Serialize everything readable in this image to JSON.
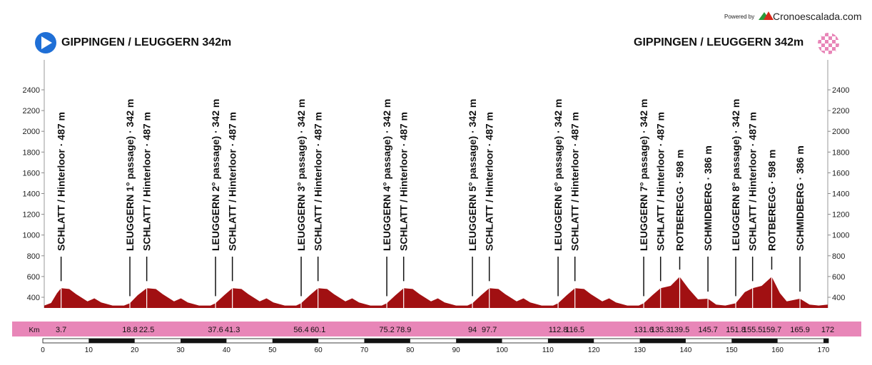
{
  "header": {
    "start_label": "GIPPINGEN / LEUGGERN 342m",
    "finish_label": "GIPPINGEN / LEUGGERN 342m",
    "powered_by": "Powered by",
    "brand": "Cronoescalada.com"
  },
  "colors": {
    "profile_fill": "#a11012",
    "km_band": "#e886b8",
    "start_icon": "#1f6fd6",
    "finish_icon": "#e886b8"
  },
  "chart_data": {
    "type": "area",
    "title": "",
    "xlabel": "",
    "ylabel": "",
    "x_unit_label": "Km",
    "xlim": [
      0,
      170
    ],
    "ylim": [
      250,
      2500
    ],
    "y_ticks": [
      400,
      600,
      800,
      1000,
      1200,
      1400,
      1600,
      1800,
      2000,
      2200,
      2400
    ],
    "x_ticks": [
      0,
      10,
      20,
      30,
      40,
      50,
      60,
      70,
      80,
      90,
      100,
      110,
      120,
      130,
      140,
      150,
      160,
      170
    ],
    "profile": {
      "x": [
        0,
        1.5,
        2.8,
        3.7,
        5.5,
        7.0,
        9.5,
        11.0,
        12.5,
        15.0,
        17.5,
        18.8,
        20.5,
        22.5,
        24.5,
        26.0,
        28.5,
        30.0,
        31.5,
        34.0,
        36.5,
        37.6,
        39.5,
        41.3,
        43.3,
        44.8,
        47.3,
        48.8,
        50.3,
        52.8,
        55.3,
        56.4,
        58.3,
        60.1,
        62.1,
        63.6,
        66.1,
        67.6,
        69.1,
        71.6,
        74.1,
        75.2,
        77.1,
        78.9,
        80.9,
        82.4,
        84.9,
        86.4,
        87.9,
        90.4,
        92.9,
        94.0,
        95.9,
        97.7,
        99.7,
        101.2,
        103.7,
        105.2,
        106.7,
        109.2,
        111.7,
        112.8,
        114.7,
        116.5,
        118.5,
        120.0,
        122.5,
        124.0,
        125.5,
        128.0,
        130.5,
        131.6,
        133.5,
        135.3,
        137.5,
        139.5,
        141.5,
        143.5,
        145.7,
        147.5,
        149.5,
        151.8,
        153.8,
        155.5,
        157.5,
        159.7,
        161.5,
        163.0,
        165.9,
        168.0,
        170.0,
        172.0
      ],
      "y": [
        320,
        345,
        440,
        487,
        480,
        430,
        360,
        390,
        350,
        320,
        320,
        342,
        420,
        487,
        480,
        430,
        360,
        390,
        350,
        320,
        320,
        342,
        420,
        487,
        480,
        430,
        360,
        390,
        350,
        320,
        320,
        342,
        420,
        487,
        480,
        430,
        360,
        390,
        350,
        320,
        320,
        342,
        420,
        487,
        480,
        430,
        360,
        390,
        350,
        320,
        320,
        342,
        420,
        487,
        480,
        430,
        360,
        390,
        350,
        320,
        320,
        342,
        420,
        487,
        480,
        430,
        360,
        390,
        350,
        320,
        320,
        342,
        420,
        487,
        510,
        598,
        480,
        380,
        386,
        330,
        320,
        342,
        450,
        487,
        510,
        598,
        440,
        360,
        386,
        330,
        320,
        330
      ]
    },
    "waypoints": [
      {
        "km": "3.7",
        "label": "SCHLATT / Hinterloor · 487 m"
      },
      {
        "km": "18.8",
        "label": "LEUGGERN 1° passage) · 342 m"
      },
      {
        "km": "22.5",
        "label": "SCHLATT / Hinterloor · 487 m"
      },
      {
        "km": "37.6",
        "label": "LEUGGERN 2° passage) · 342 m"
      },
      {
        "km": "41.3",
        "label": "SCHLATT / Hinterloor · 487 m"
      },
      {
        "km": "56.4",
        "label": "LEUGGERN 3° passage) · 342 m"
      },
      {
        "km": "60.1",
        "label": "SCHLATT / Hinterloor · 487 m"
      },
      {
        "km": "75.2",
        "label": "LEUGGERN 4° passage) · 342 m"
      },
      {
        "km": "78.9",
        "label": "SCHLATT / Hinterloor · 487 m"
      },
      {
        "km": "94",
        "label": "LEUGGERN 5° passage) · 342 m"
      },
      {
        "km": "97.7",
        "label": "SCHLATT / Hinterloor · 487 m"
      },
      {
        "km": "112.8",
        "label": "LEUGGERN 6° passage) · 342 m"
      },
      {
        "km": "116.5",
        "label": "SCHLATT / Hinterloor · 487 m"
      },
      {
        "km": "131.6",
        "label": "LEUGGERN 7° passage) · 342 m"
      },
      {
        "km": "135.3",
        "label": "SCHLATT / Hinterloor · 487 m"
      },
      {
        "km": "139.5",
        "label": "ROTBEREGG · 598 m"
      },
      {
        "km": "145.7",
        "label": "SCHMIDBERG · 386 m"
      },
      {
        "km": "151.8",
        "label": "LEUGGERN 8° passage) · 342 m"
      },
      {
        "km": "155.5",
        "label": "SCHLATT / Hinterloor · 487 m"
      },
      {
        "km": "159.7",
        "label": "ROTBEREGG · 598 m"
      },
      {
        "km": "165.9",
        "label": "SCHMIDBERG · 386 m"
      },
      {
        "km": "172",
        "label": ""
      }
    ],
    "waypoint_elevations": [
      487,
      342,
      487,
      342,
      487,
      342,
      487,
      342,
      487,
      342,
      487,
      342,
      487,
      342,
      487,
      598,
      386,
      342,
      487,
      598,
      386,
      330
    ]
  }
}
